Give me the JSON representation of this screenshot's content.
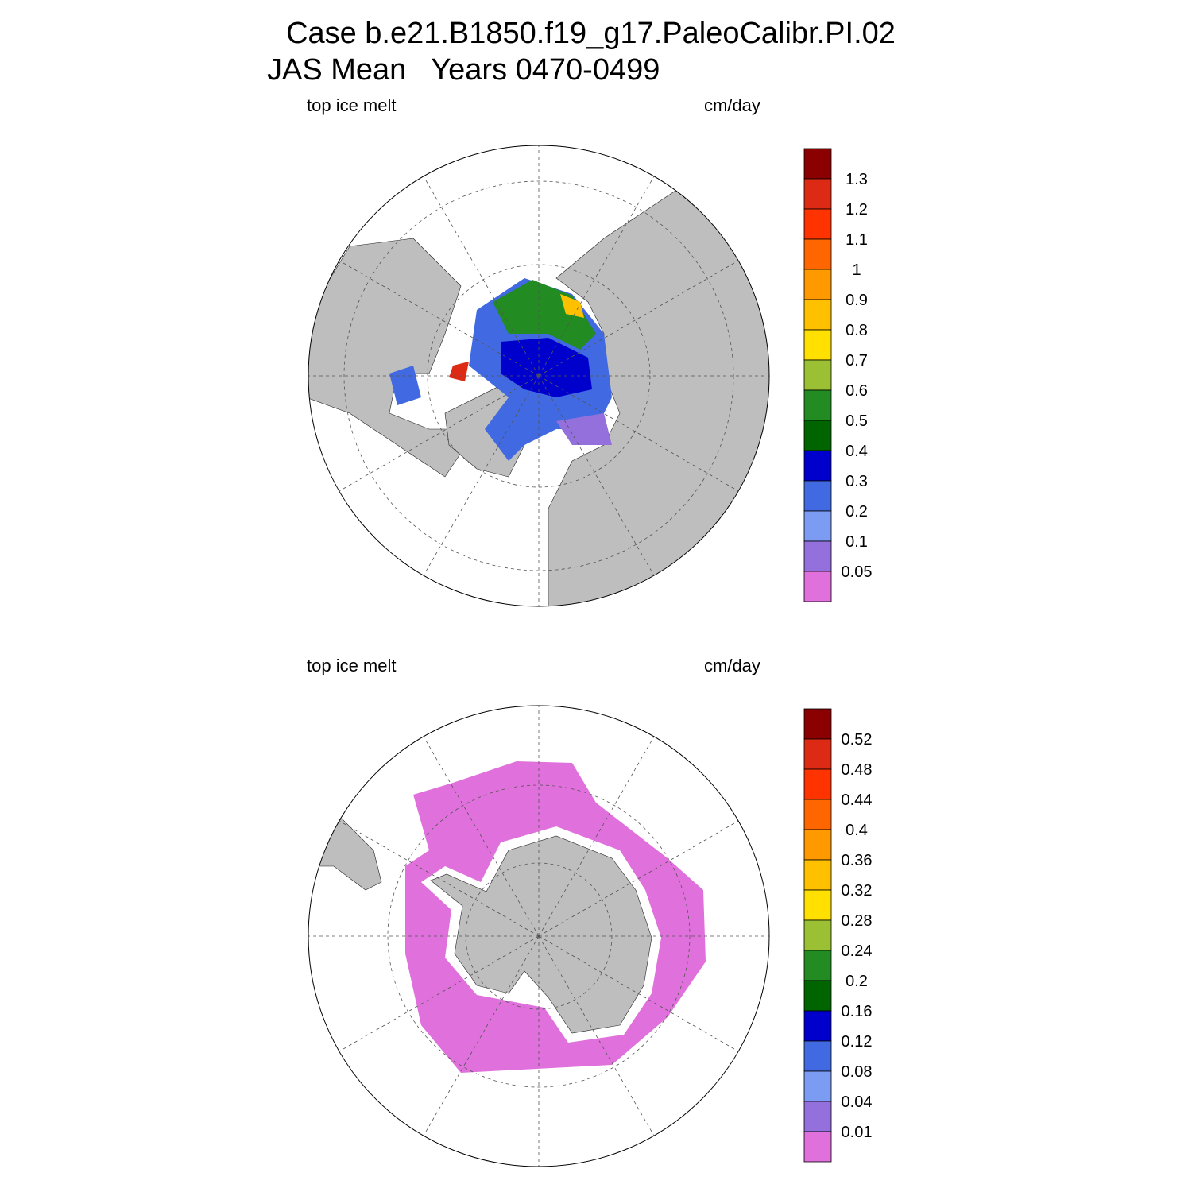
{
  "title": {
    "line1": "Case b.e21.B1850.f19_g17.PaleoCalibr.PI.02",
    "line2": "JAS Mean   Years 0470-0499"
  },
  "panels": [
    {
      "left_label": "top ice melt",
      "right_label": "cm/day",
      "colorbar": {
        "levels": [
          1.3,
          1.2,
          1.1,
          1,
          0.9,
          0.8,
          0.7,
          0.6,
          0.5,
          0.4,
          0.3,
          0.2,
          0.1,
          0.05
        ],
        "colors": [
          "#8b0000",
          "#dd2a15",
          "#ff3300",
          "#ff6600",
          "#ff9900",
          "#ffc000",
          "#ffe000",
          "#9bc034",
          "#228b22",
          "#006400",
          "#0000cd",
          "#4169e1",
          "#7b9cf2",
          "#9370db",
          "#e070dc"
        ]
      }
    },
    {
      "left_label": "top ice melt",
      "right_label": "cm/day",
      "colorbar": {
        "levels": [
          0.52,
          0.48,
          0.44,
          0.4,
          0.36,
          0.32,
          0.28,
          0.24,
          0.2,
          0.16,
          0.12,
          0.08,
          0.04,
          0.01
        ],
        "colors": [
          "#8b0000",
          "#dd2a15",
          "#ff3300",
          "#ff6600",
          "#ff9900",
          "#ffc000",
          "#ffe000",
          "#9bc034",
          "#228b22",
          "#006400",
          "#0000cd",
          "#4169e1",
          "#7b9cf2",
          "#9370db",
          "#e070dc"
        ]
      }
    }
  ]
}
